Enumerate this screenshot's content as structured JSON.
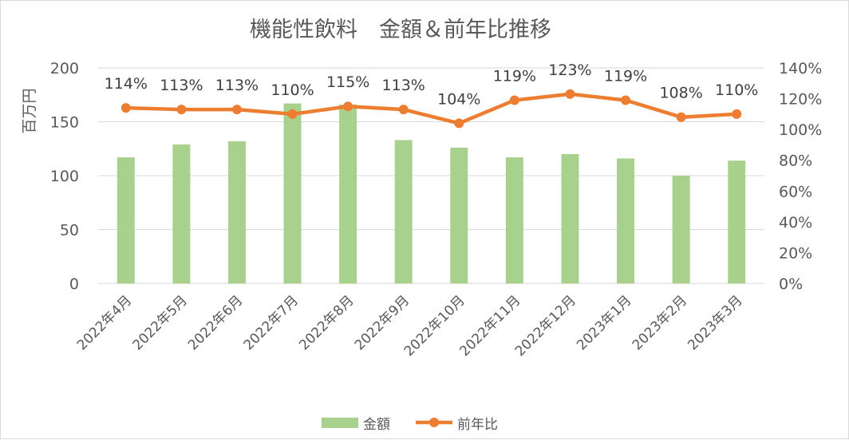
{
  "chart_data": {
    "type": "bar",
    "title": "機能性飲料　金額＆前年比推移",
    "ylabel": "百万円",
    "y2label": "",
    "categories": [
      "2022年4月",
      "2022年5月",
      "2022年6月",
      "2022年7月",
      "2022年8月",
      "2022年9月",
      "2022年10月",
      "2022年11月",
      "2022年12月",
      "2023年1月",
      "2023年2月",
      "2023年3月"
    ],
    "ylim": [
      0,
      200
    ],
    "yticks": [
      "0",
      "50",
      "100",
      "150",
      "200"
    ],
    "y2lim": [
      0,
      1.4
    ],
    "y2ticks": [
      "0%",
      "20%",
      "40%",
      "60%",
      "80%",
      "100%",
      "120%",
      "140%"
    ],
    "grid": true,
    "legend_position": "bottom",
    "series": [
      {
        "name": "金額",
        "type": "bar",
        "axis": "left",
        "color": "#a9d18e",
        "values": [
          117,
          129,
          132,
          167,
          166,
          133,
          126,
          117,
          120,
          116,
          100,
          114
        ]
      },
      {
        "name": "前年比",
        "type": "line",
        "axis": "right",
        "color": "#ed7d31",
        "values": [
          1.14,
          1.13,
          1.13,
          1.1,
          1.15,
          1.13,
          1.04,
          1.19,
          1.23,
          1.19,
          1.08,
          1.1
        ],
        "labels": [
          "114%",
          "113%",
          "113%",
          "110%",
          "115%",
          "113%",
          "104%",
          "119%",
          "123%",
          "119%",
          "108%",
          "110%"
        ]
      }
    ]
  }
}
